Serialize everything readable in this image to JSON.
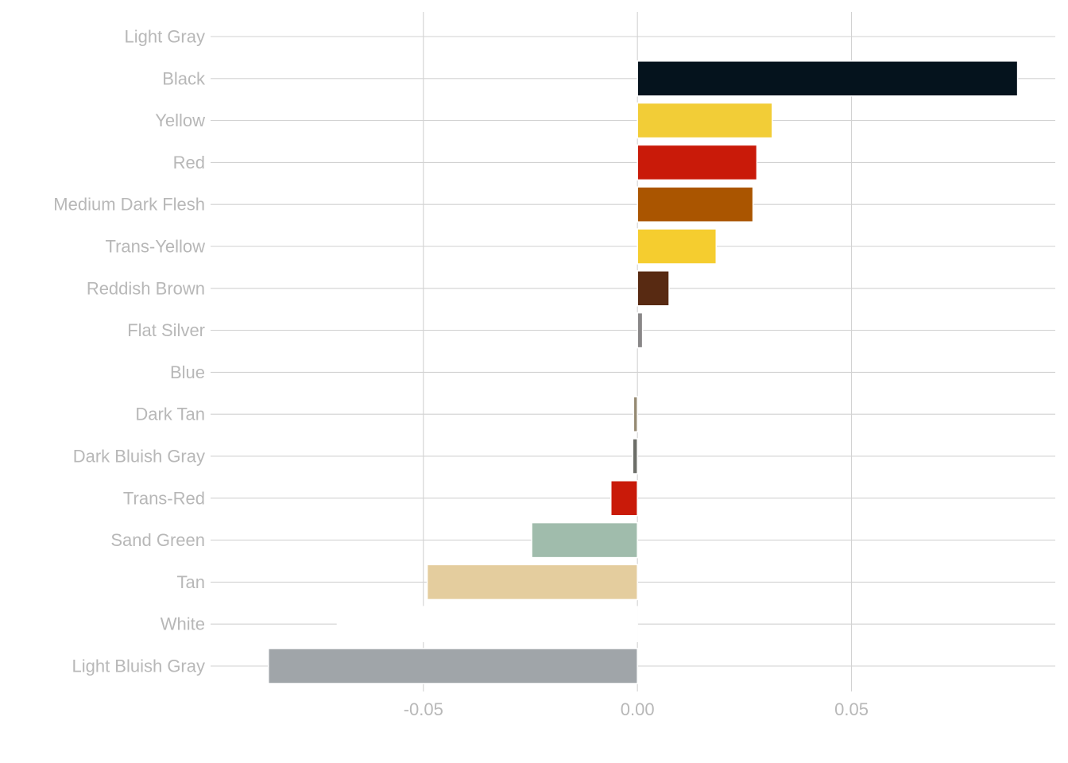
{
  "chart_data": {
    "type": "bar",
    "orientation": "horizontal",
    "title": "",
    "xlabel": "",
    "ylabel": "",
    "xlim": [
      -0.0997,
      0.0976
    ],
    "x_ticks": [
      -0.05,
      0.0,
      0.05
    ],
    "x_tick_labels": [
      "-0.05",
      "0.00",
      "0.05"
    ],
    "grid": true,
    "legend": "none",
    "categories": [
      "Light Gray",
      "Black",
      "Yellow",
      "Red",
      "Medium Dark Flesh",
      "Trans-Yellow",
      "Reddish Brown",
      "Flat Silver",
      "Blue",
      "Dark Tan",
      "Dark Bluish Gray",
      "Trans-Red",
      "Sand Green",
      "Tan",
      "White",
      "Light Bluish Gray"
    ],
    "values": [
      0.0,
      0.0888,
      0.0315,
      0.0279,
      0.027,
      0.0184,
      0.0074,
      0.0012,
      0.0,
      -0.0009,
      -0.0011,
      -0.0062,
      -0.0247,
      -0.0491,
      -0.0701,
      -0.0862
    ],
    "colors": [
      "#9ba19d",
      "#05131d",
      "#f2cd37",
      "#c91a09",
      "#aa5500",
      "#f5cd2f",
      "#582a12",
      "#898788",
      "#0055bf",
      "#958a73",
      "#6c6e68",
      "#c91a09",
      "#a0bcac",
      "#e4cd9e",
      "#ffffff",
      "#a0a5a9"
    ]
  }
}
